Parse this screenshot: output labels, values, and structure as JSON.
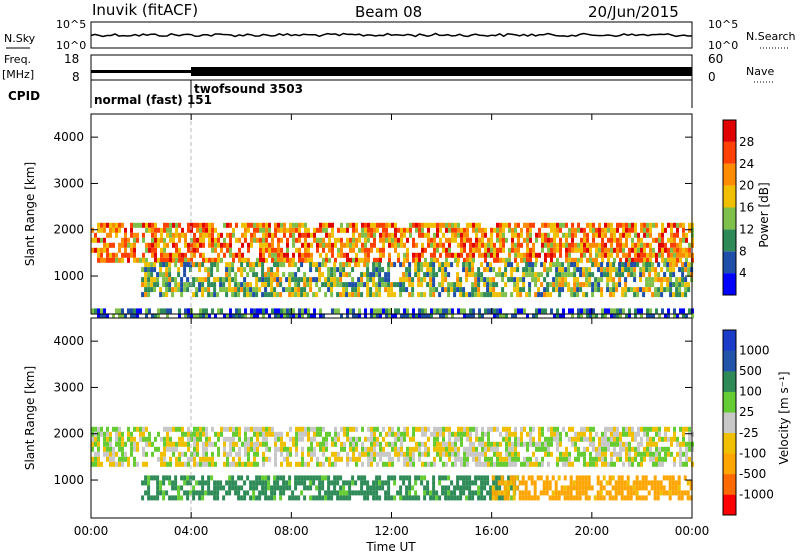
{
  "header": {
    "station": "Inuvik (fitACF)",
    "beam": "Beam 08",
    "date": "20/Jun/2015"
  },
  "sky_panel": {
    "left_label": "N.Sky",
    "right_label": "N.Search",
    "left_ticks": [
      "10^5",
      "10^0"
    ],
    "right_ticks": [
      "10^5",
      "10^0"
    ]
  },
  "freq_panel": {
    "label_top": "Freq.",
    "label_unit": "[MHz]",
    "left_ticks": [
      "18",
      "8"
    ],
    "right_label": "Nave",
    "right_ticks": [
      "60",
      "0"
    ]
  },
  "cpid_panel": {
    "label": "CPID",
    "modes": [
      {
        "text": "normal (fast) 151",
        "start_hour": 0.0
      },
      {
        "text": "twofsound 3503",
        "start_hour": 4.0
      }
    ]
  },
  "x_axis": {
    "label": "Time UT",
    "ticks": [
      "00:00",
      "04:00",
      "08:00",
      "12:00",
      "16:00",
      "20:00",
      "00:00"
    ]
  },
  "colors": {
    "power": [
      "#0000ff",
      "#1e4ea8",
      "#2e8b57",
      "#7fc04a",
      "#f0c000",
      "#ff8c00",
      "#ff4000",
      "#e00000"
    ],
    "velocity": [
      "#ff0000",
      "#ff6a00",
      "#ffa500",
      "#f0c000",
      "#c8c8c8",
      "#66cc33",
      "#2e8b57",
      "#2255aa",
      "#1a3cc8"
    ]
  },
  "chart_data": [
    {
      "type": "heatmap",
      "name": "power",
      "ylabel": "Slant Range [km]",
      "xlabel": "",
      "xlim_hours": [
        0,
        24
      ],
      "ylim_km": [
        180,
        4500
      ],
      "y_ticks": [
        "1000",
        "2000",
        "3000",
        "4000"
      ],
      "colorbar": {
        "label": "Power [dB]",
        "range": [
          0,
          32
        ],
        "ticks": [
          "4",
          "8",
          "12",
          "16",
          "20",
          "24",
          "28"
        ]
      },
      "bands": [
        {
          "range_km": [
            1300,
            2150
          ],
          "hours": [
            0,
            24
          ],
          "level_db": 22
        },
        {
          "range_km": [
            600,
            1300
          ],
          "hours": [
            2,
            24
          ],
          "level_db": 14
        },
        {
          "range_km": [
            180,
            300
          ],
          "hours": [
            0,
            24
          ],
          "level_db": 8
        }
      ]
    },
    {
      "type": "heatmap",
      "name": "velocity",
      "ylabel": "Slant Range [km]",
      "xlabel": "Time UT",
      "xlim_hours": [
        0,
        24
      ],
      "ylim_km": [
        180,
        4500
      ],
      "y_ticks": [
        "1000",
        "2000",
        "3000",
        "4000"
      ],
      "colorbar": {
        "label": "Velocity [m s⁻¹]",
        "ticks": [
          "1000",
          "500",
          "100",
          "25",
          "-25",
          "-100",
          "-500",
          "-1000"
        ]
      },
      "bands": [
        {
          "range_km": [
            1300,
            2150
          ],
          "hours": [
            0,
            24
          ],
          "velocity_ms": 0
        },
        {
          "range_km": [
            650,
            1100
          ],
          "hours": [
            2,
            17
          ],
          "velocity_ms": 150
        },
        {
          "range_km": [
            650,
            1100
          ],
          "hours": [
            16,
            24
          ],
          "velocity_ms": -150
        }
      ]
    }
  ]
}
